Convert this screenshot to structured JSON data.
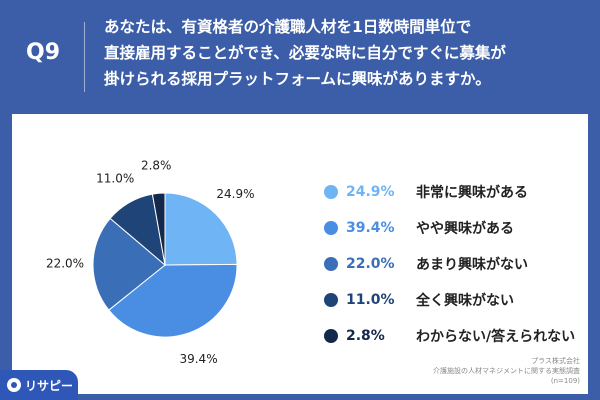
{
  "header": {
    "q_label": "Q9",
    "question_lines": [
      "あなたは、有資格者の介護職人材を1日数時間単位で",
      "直接雇用することができ、必要な時に自分ですぐに募集が",
      "掛けられる採用プラットフォームに興味がありますか。"
    ]
  },
  "chart_data": {
    "type": "pie",
    "categories": [
      "非常に興味がある",
      "やや興味がある",
      "あまり興味がない",
      "全く興味がない",
      "わからない/答えられない"
    ],
    "values": [
      24.9,
      39.4,
      22.0,
      11.0,
      2.8
    ],
    "labels": [
      "24.9%",
      "39.4%",
      "22.0%",
      "11.0%",
      "2.8%"
    ],
    "colors": [
      "#6fb4f4",
      "#4a8ee4",
      "#3a6eb6",
      "#1f4478",
      "#13284a"
    ],
    "title": "",
    "xlabel": "",
    "ylabel": ""
  },
  "source": {
    "company": "プラス株式会社",
    "survey": "介護施設の人材マネジメントに関する実態調査",
    "n": "(n=109)"
  },
  "logo": {
    "text": "リサピー"
  }
}
